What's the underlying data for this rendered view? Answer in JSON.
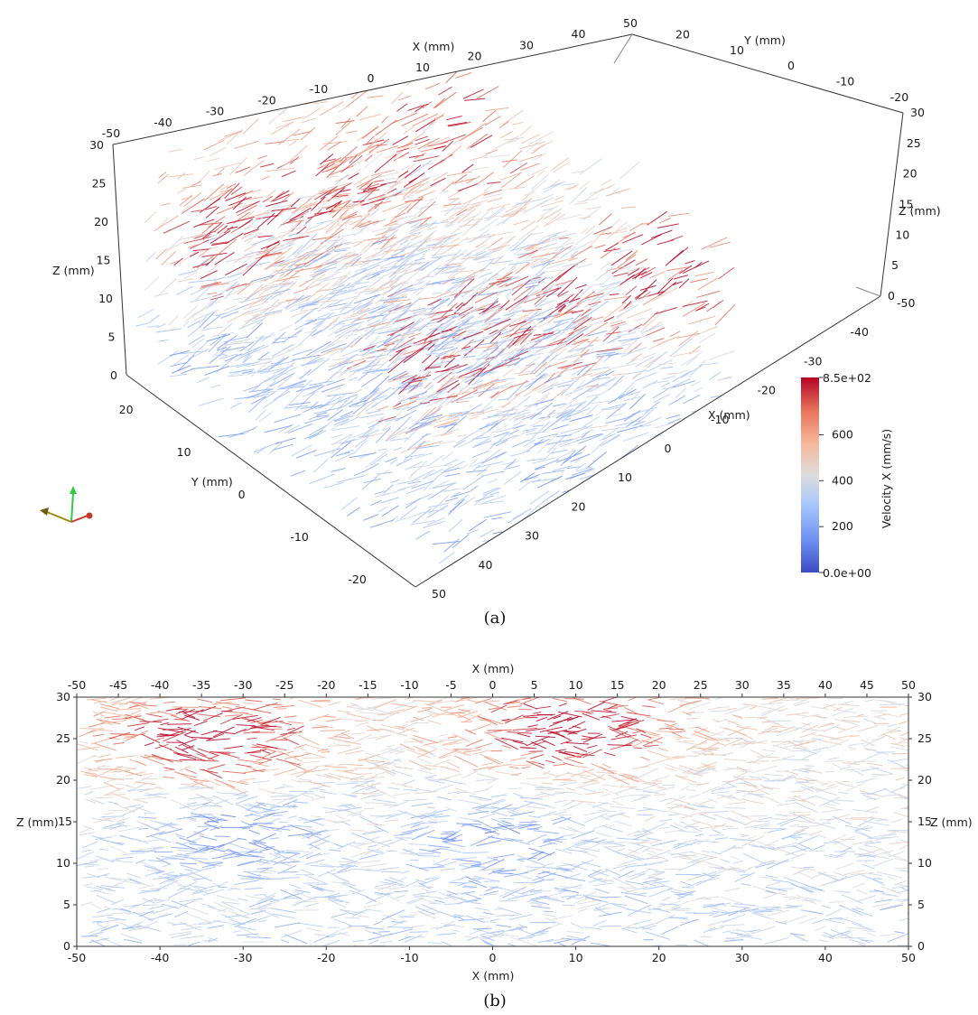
{
  "panels": [
    {
      "caption": "(a)",
      "view": "3d-perspective",
      "axes": {
        "x_label": "X (mm)",
        "y_label": "Y (mm)",
        "z_label": "Z (mm)",
        "x_top_ticks": [
          "-50",
          "-40",
          "-30",
          "-20",
          "-10",
          "0",
          "10",
          "20",
          "30",
          "40",
          "50"
        ],
        "x_side_ticks": [
          "-50",
          "-40",
          "-30",
          "-20",
          "-10",
          "0",
          "10",
          "20",
          "30",
          "40",
          "50"
        ],
        "y_top_ticks": [
          "20",
          "10",
          "0",
          "-10",
          "-20"
        ],
        "y_left_ticks": [
          "20",
          "10",
          "0",
          "-10",
          "-20"
        ],
        "z_left_ticks": [
          "0",
          "5",
          "10",
          "15",
          "20",
          "25",
          "30"
        ],
        "z_right_ticks": [
          "0",
          "5",
          "10",
          "15",
          "20",
          "25",
          "30"
        ]
      }
    },
    {
      "caption": "(b)",
      "view": "xz-side",
      "axes": {
        "x_label": "X (mm)",
        "z_label": "Z (mm)",
        "x_top_ticks": [
          "-50",
          "-45",
          "-40",
          "-35",
          "-30",
          "-25",
          "-20",
          "-15",
          "-10",
          "-5",
          "0",
          "5",
          "10",
          "15",
          "20",
          "25",
          "30",
          "35",
          "40",
          "45",
          "50"
        ],
        "x_bottom_ticks": [
          "-50",
          "-40",
          "-30",
          "-20",
          "-10",
          "0",
          "10",
          "20",
          "30",
          "40",
          "50"
        ],
        "z_ticks": [
          "0",
          "5",
          "10",
          "15",
          "20",
          "25",
          "30"
        ]
      }
    }
  ],
  "colorbar": {
    "title": "Velocity X (mm/s)",
    "max_label": "8.5e+02",
    "min_label": "0.0e+00",
    "tick_labels": [
      "600",
      "400",
      "200"
    ],
    "tick_values": [
      600,
      400,
      200
    ],
    "range": [
      0,
      850
    ],
    "colormap": "coolwarm",
    "colors": [
      "#3b4cc0",
      "#6f92f3",
      "#aac7fd",
      "#dddddd",
      "#f7b89c",
      "#e7745b",
      "#b40426"
    ]
  },
  "orientation_widget": {
    "icon": "axes-triad-icon",
    "colors": [
      "#2ecc40",
      "#c0392b",
      "#9a8a10"
    ]
  },
  "chart_data": [
    {
      "type": "scatter",
      "title": "",
      "xlabel": "X (mm)",
      "ylabel": "Y (mm)",
      "zlabel": "Z (mm)",
      "xlim": [
        -50,
        50
      ],
      "ylim": [
        -25,
        25
      ],
      "zlim": [
        0,
        30
      ],
      "color_variable": "Velocity X (mm/s)",
      "high_velocity_regions": [
        {
          "x": -30,
          "z": 22,
          "velocity": 800
        },
        {
          "x": 35,
          "z": 24,
          "velocity": 800
        }
      ]
    },
    {
      "type": "scatter",
      "title": "",
      "xlabel": "X (mm)",
      "ylabel": "Z (mm)",
      "xlim": [
        -50,
        50
      ],
      "ylim": [
        0,
        30
      ],
      "color_variable": "Velocity X (mm/s)",
      "high_velocity_regions": [
        {
          "x": -35,
          "z": 25,
          "velocity": 800
        },
        {
          "x": 8,
          "z": 26,
          "velocity": 800
        }
      ],
      "low_velocity_regions": [
        {
          "x": -32,
          "z": 14,
          "velocity": 150
        },
        {
          "x": 0,
          "z": 13,
          "velocity": 150
        }
      ]
    }
  ]
}
